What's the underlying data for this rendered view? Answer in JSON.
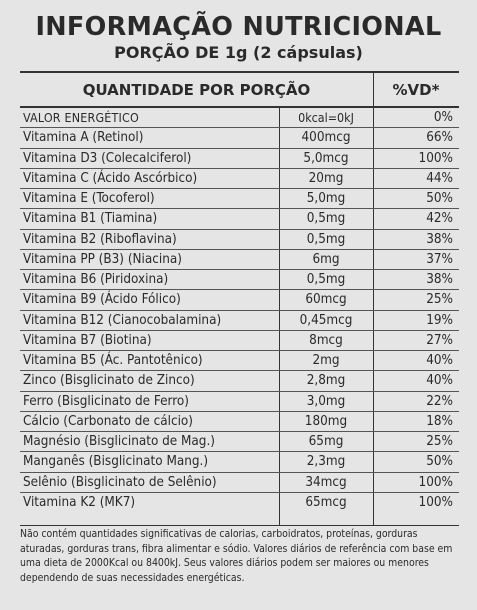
{
  "header": {
    "title": "INFORMAÇÃO NUTRICIONAL",
    "subtitle": "PORÇÃO DE 1g (2 cápsulas)"
  },
  "table": {
    "col_quantity": "QUANTIDADE POR PORÇÃO",
    "col_vd": "%VD*",
    "rows": [
      {
        "name": "VALOR ENERGÉTICO",
        "amount": "0kcal=0kJ",
        "vd": "0%"
      },
      {
        "name": "Vitamina A (Retinol)",
        "amount": "400mcg",
        "vd": "66%"
      },
      {
        "name": "Vitamina D3 (Colecalciferol)",
        "amount": "5,0mcg",
        "vd": "100%"
      },
      {
        "name": "Vitamina C (Ácido Ascórbico)",
        "amount": "20mg",
        "vd": "44%"
      },
      {
        "name": "Vitamina E (Tocoferol)",
        "amount": "5,0mg",
        "vd": "50%"
      },
      {
        "name": "Vitamina B1 (Tiamina)",
        "amount": "0,5mg",
        "vd": "42%"
      },
      {
        "name": "Vitamina B2 (Riboflavina)",
        "amount": "0,5mg",
        "vd": "38%"
      },
      {
        "name": "Vitamina PP (B3) (Niacina)",
        "amount": "6mg",
        "vd": "37%"
      },
      {
        "name": "Vitamina B6 (Piridoxina)",
        "amount": "0,5mg",
        "vd": "38%"
      },
      {
        "name": "Vitamina B9 (Ácido Fólico)",
        "amount": "60mcg",
        "vd": "25%"
      },
      {
        "name": "Vitamina B12 (Cianocobalamina)",
        "amount": "0,45mcg",
        "vd": "19%"
      },
      {
        "name": "Vitamina B7 (Biotina)",
        "amount": "8mcg",
        "vd": "27%"
      },
      {
        "name": "Vitamina B5 (Ác. Pantotênico)",
        "amount": "2mg",
        "vd": "40%"
      },
      {
        "name": "Zinco (Bisglicinato de Zinco)",
        "amount": "2,8mg",
        "vd": "40%"
      },
      {
        "name": "Ferro (Bisglicinato de Ferro)",
        "amount": "3,0mg",
        "vd": "22%"
      },
      {
        "name": "Cálcio (Carbonato de cálcio)",
        "amount": "180mg",
        "vd": "18%"
      },
      {
        "name": "Magnésio (Bisglicinato de Mag.)",
        "amount": "65mg",
        "vd": "25%"
      },
      {
        "name": "Manganês (Bisglicinato Mang.)",
        "amount": "2,3mg",
        "vd": "50%"
      },
      {
        "name": "Selênio (Bisglicinato de Selênio)",
        "amount": "34mcg",
        "vd": "100%"
      },
      {
        "name": "Vitamina K2 (MK7)",
        "amount": "65mcg",
        "vd": "100%"
      }
    ]
  },
  "footnote": "Não contém quantidades significativas de calorias, carboidratos, proteínas, gorduras aturadas, gorduras trans, fibra alimentar e sódio. Valores diários de referência com base em uma dieta de 2000Kcal ou 8400kJ. Seus valores diários podem ser maiores ou menores dependendo de suas necessidades energéticas."
}
